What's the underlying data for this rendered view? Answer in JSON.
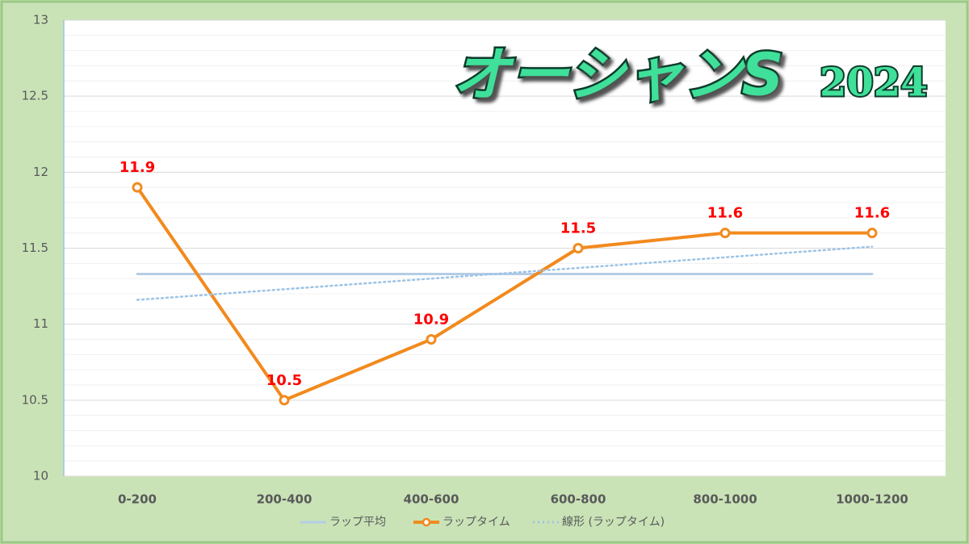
{
  "chart_data": {
    "type": "line",
    "title": "オーシャンS",
    "title_year": "2024",
    "categories": [
      "0-200",
      "200-400",
      "400-600",
      "600-800",
      "800-1000",
      "1000-1200"
    ],
    "series": [
      {
        "name": "ラップ平均",
        "color": "#b4cde6",
        "style": "solid",
        "marker": false,
        "values": [
          11.33,
          11.33,
          11.33,
          11.33,
          11.33,
          11.33
        ]
      },
      {
        "name": "ラップタイム",
        "color": "#f28a1e",
        "style": "solid",
        "marker": true,
        "data_labels": true,
        "values": [
          11.9,
          10.5,
          10.9,
          11.5,
          11.6,
          11.6
        ]
      },
      {
        "name": "線形 (ラップタイム)",
        "color": "#9dc3e6",
        "style": "dotted",
        "marker": false,
        "values": [
          11.16,
          11.23,
          11.3,
          11.37,
          11.44,
          11.51
        ]
      }
    ],
    "ylim": [
      10,
      13
    ],
    "yticks": [
      10,
      10.5,
      11,
      11.5,
      12,
      12.5,
      13
    ],
    "minor_yticks": [
      10.1,
      10.2,
      10.3,
      10.4,
      10.6,
      10.7,
      10.8,
      10.9,
      11.1,
      11.2,
      11.3,
      11.4,
      11.6,
      11.7,
      11.8,
      11.9,
      12.1,
      12.2,
      12.3,
      12.4,
      12.6,
      12.7,
      12.8,
      12.9
    ],
    "grid": true,
    "legend": "bottom"
  }
}
